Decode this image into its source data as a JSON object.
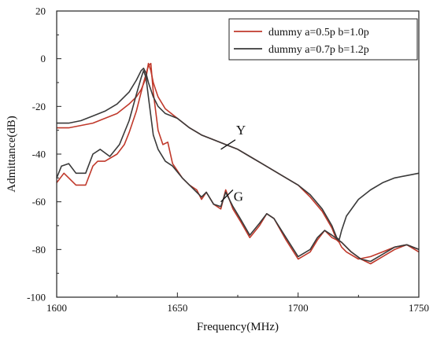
{
  "chart_data": {
    "type": "line",
    "title": "",
    "xlabel": "Frequency(MHz)",
    "ylabel": "Admittance(dB)",
    "xlim": [
      1600,
      1750
    ],
    "ylim": [
      -100,
      20
    ],
    "xticks": [
      1600,
      1650,
      1700,
      1750
    ],
    "yticks": [
      -100,
      -80,
      -60,
      -40,
      -20,
      0,
      20
    ],
    "grid": false,
    "legend_position": "top-right",
    "annotations": [
      {
        "text": "Y",
        "x": 1673,
        "y": -33
      },
      {
        "text": "G",
        "x": 1672,
        "y": -61
      }
    ],
    "series": [
      {
        "name": "dummy a=0.5p b=1.0p",
        "color": "#c0392b",
        "curves": [
          {
            "label": "Y",
            "x": [
              1600,
              1605,
              1610,
              1615,
              1620,
              1625,
              1630,
              1633,
              1635,
              1637,
              1638,
              1639,
              1640,
              1641,
              1642,
              1645,
              1650,
              1655,
              1660,
              1665,
              1670,
              1675,
              1680,
              1685,
              1690,
              1695,
              1700,
              1705,
              1710,
              1714,
              1716,
              1717,
              1718,
              1720,
              1725,
              1730,
              1735,
              1740,
              1745,
              1750
            ],
            "y": [
              -29,
              -29,
              -28,
              -27,
              -25,
              -23,
              -19,
              -16,
              -13,
              -8,
              -2,
              -5,
              -10,
              -13,
              -16,
              -21,
              -25,
              -29,
              -32,
              -34,
              -36,
              -38,
              -41,
              -44,
              -47,
              -50,
              -53,
              -58,
              -64,
              -71,
              -76,
              -77,
              -79,
              -81,
              -84,
              -83,
              -81,
              -79,
              -78,
              -80
            ]
          },
          {
            "label": "G",
            "x": [
              1600,
              1603,
              1605,
              1608,
              1612,
              1615,
              1617,
              1620,
              1625,
              1628,
              1630,
              1633,
              1636,
              1638,
              1639,
              1640,
              1642,
              1644,
              1646,
              1648,
              1652,
              1655,
              1658,
              1660,
              1662,
              1665,
              1668,
              1670,
              1673,
              1676,
              1680,
              1684,
              1687,
              1690,
              1695,
              1700,
              1705,
              1708,
              1711,
              1714,
              1718,
              1722,
              1726,
              1730,
              1735,
              1740,
              1745,
              1750
            ],
            "y": [
              -52,
              -48,
              -50,
              -53,
              -53,
              -45,
              -43,
              -43,
              -40,
              -36,
              -31,
              -22,
              -10,
              -3,
              -2,
              -14,
              -30,
              -36,
              -35,
              -44,
              -50,
              -53,
              -55,
              -59,
              -56,
              -61,
              -63,
              -55,
              -63,
              -68,
              -75,
              -70,
              -65,
              -67,
              -76,
              -84,
              -81,
              -76,
              -72,
              -75,
              -77,
              -81,
              -84,
              -86,
              -83,
              -80,
              -78,
              -81
            ]
          }
        ]
      },
      {
        "name": "dummy a=0.7p b=1.2p",
        "color": "#3a3a3a",
        "curves": [
          {
            "label": "Y",
            "x": [
              1600,
              1605,
              1610,
              1615,
              1620,
              1625,
              1630,
              1633,
              1635,
              1636,
              1637,
              1638,
              1640,
              1642,
              1645,
              1650,
              1655,
              1660,
              1665,
              1670,
              1675,
              1680,
              1685,
              1690,
              1695,
              1700,
              1705,
              1710,
              1714,
              1716,
              1717,
              1718,
              1720,
              1725,
              1730,
              1735,
              1740,
              1745,
              1750
            ],
            "y": [
              -27,
              -27,
              -26,
              -24,
              -22,
              -19,
              -14,
              -9,
              -5,
              -4,
              -6,
              -10,
              -16,
              -20,
              -23,
              -25,
              -29,
              -32,
              -34,
              -36,
              -38,
              -41,
              -44,
              -47,
              -50,
              -53,
              -57,
              -63,
              -70,
              -75,
              -76,
              -72,
              -66,
              -59,
              -55,
              -52,
              -50,
              -49,
              -48
            ]
          },
          {
            "label": "G",
            "x": [
              1600,
              1602,
              1605,
              1608,
              1612,
              1615,
              1618,
              1622,
              1626,
              1630,
              1633,
              1635,
              1636,
              1637,
              1638,
              1640,
              1642,
              1645,
              1648,
              1652,
              1655,
              1658,
              1660,
              1662,
              1665,
              1668,
              1670,
              1673,
              1676,
              1680,
              1684,
              1687,
              1690,
              1695,
              1700,
              1705,
              1708,
              1711,
              1714,
              1718,
              1722,
              1726,
              1730,
              1735,
              1740,
              1745,
              1750
            ],
            "y": [
              -50,
              -45,
              -44,
              -48,
              -48,
              -40,
              -38,
              -41,
              -36,
              -26,
              -15,
              -8,
              -5,
              -8,
              -16,
              -32,
              -38,
              -43,
              -45,
              -50,
              -53,
              -56,
              -58,
              -56,
              -61,
              -62,
              -56,
              -62,
              -67,
              -74,
              -69,
              -65,
              -67,
              -75,
              -83,
              -80,
              -75,
              -72,
              -74,
              -77,
              -81,
              -84,
              -85,
              -82,
              -79,
              -78,
              -80
            ]
          }
        ]
      }
    ]
  }
}
